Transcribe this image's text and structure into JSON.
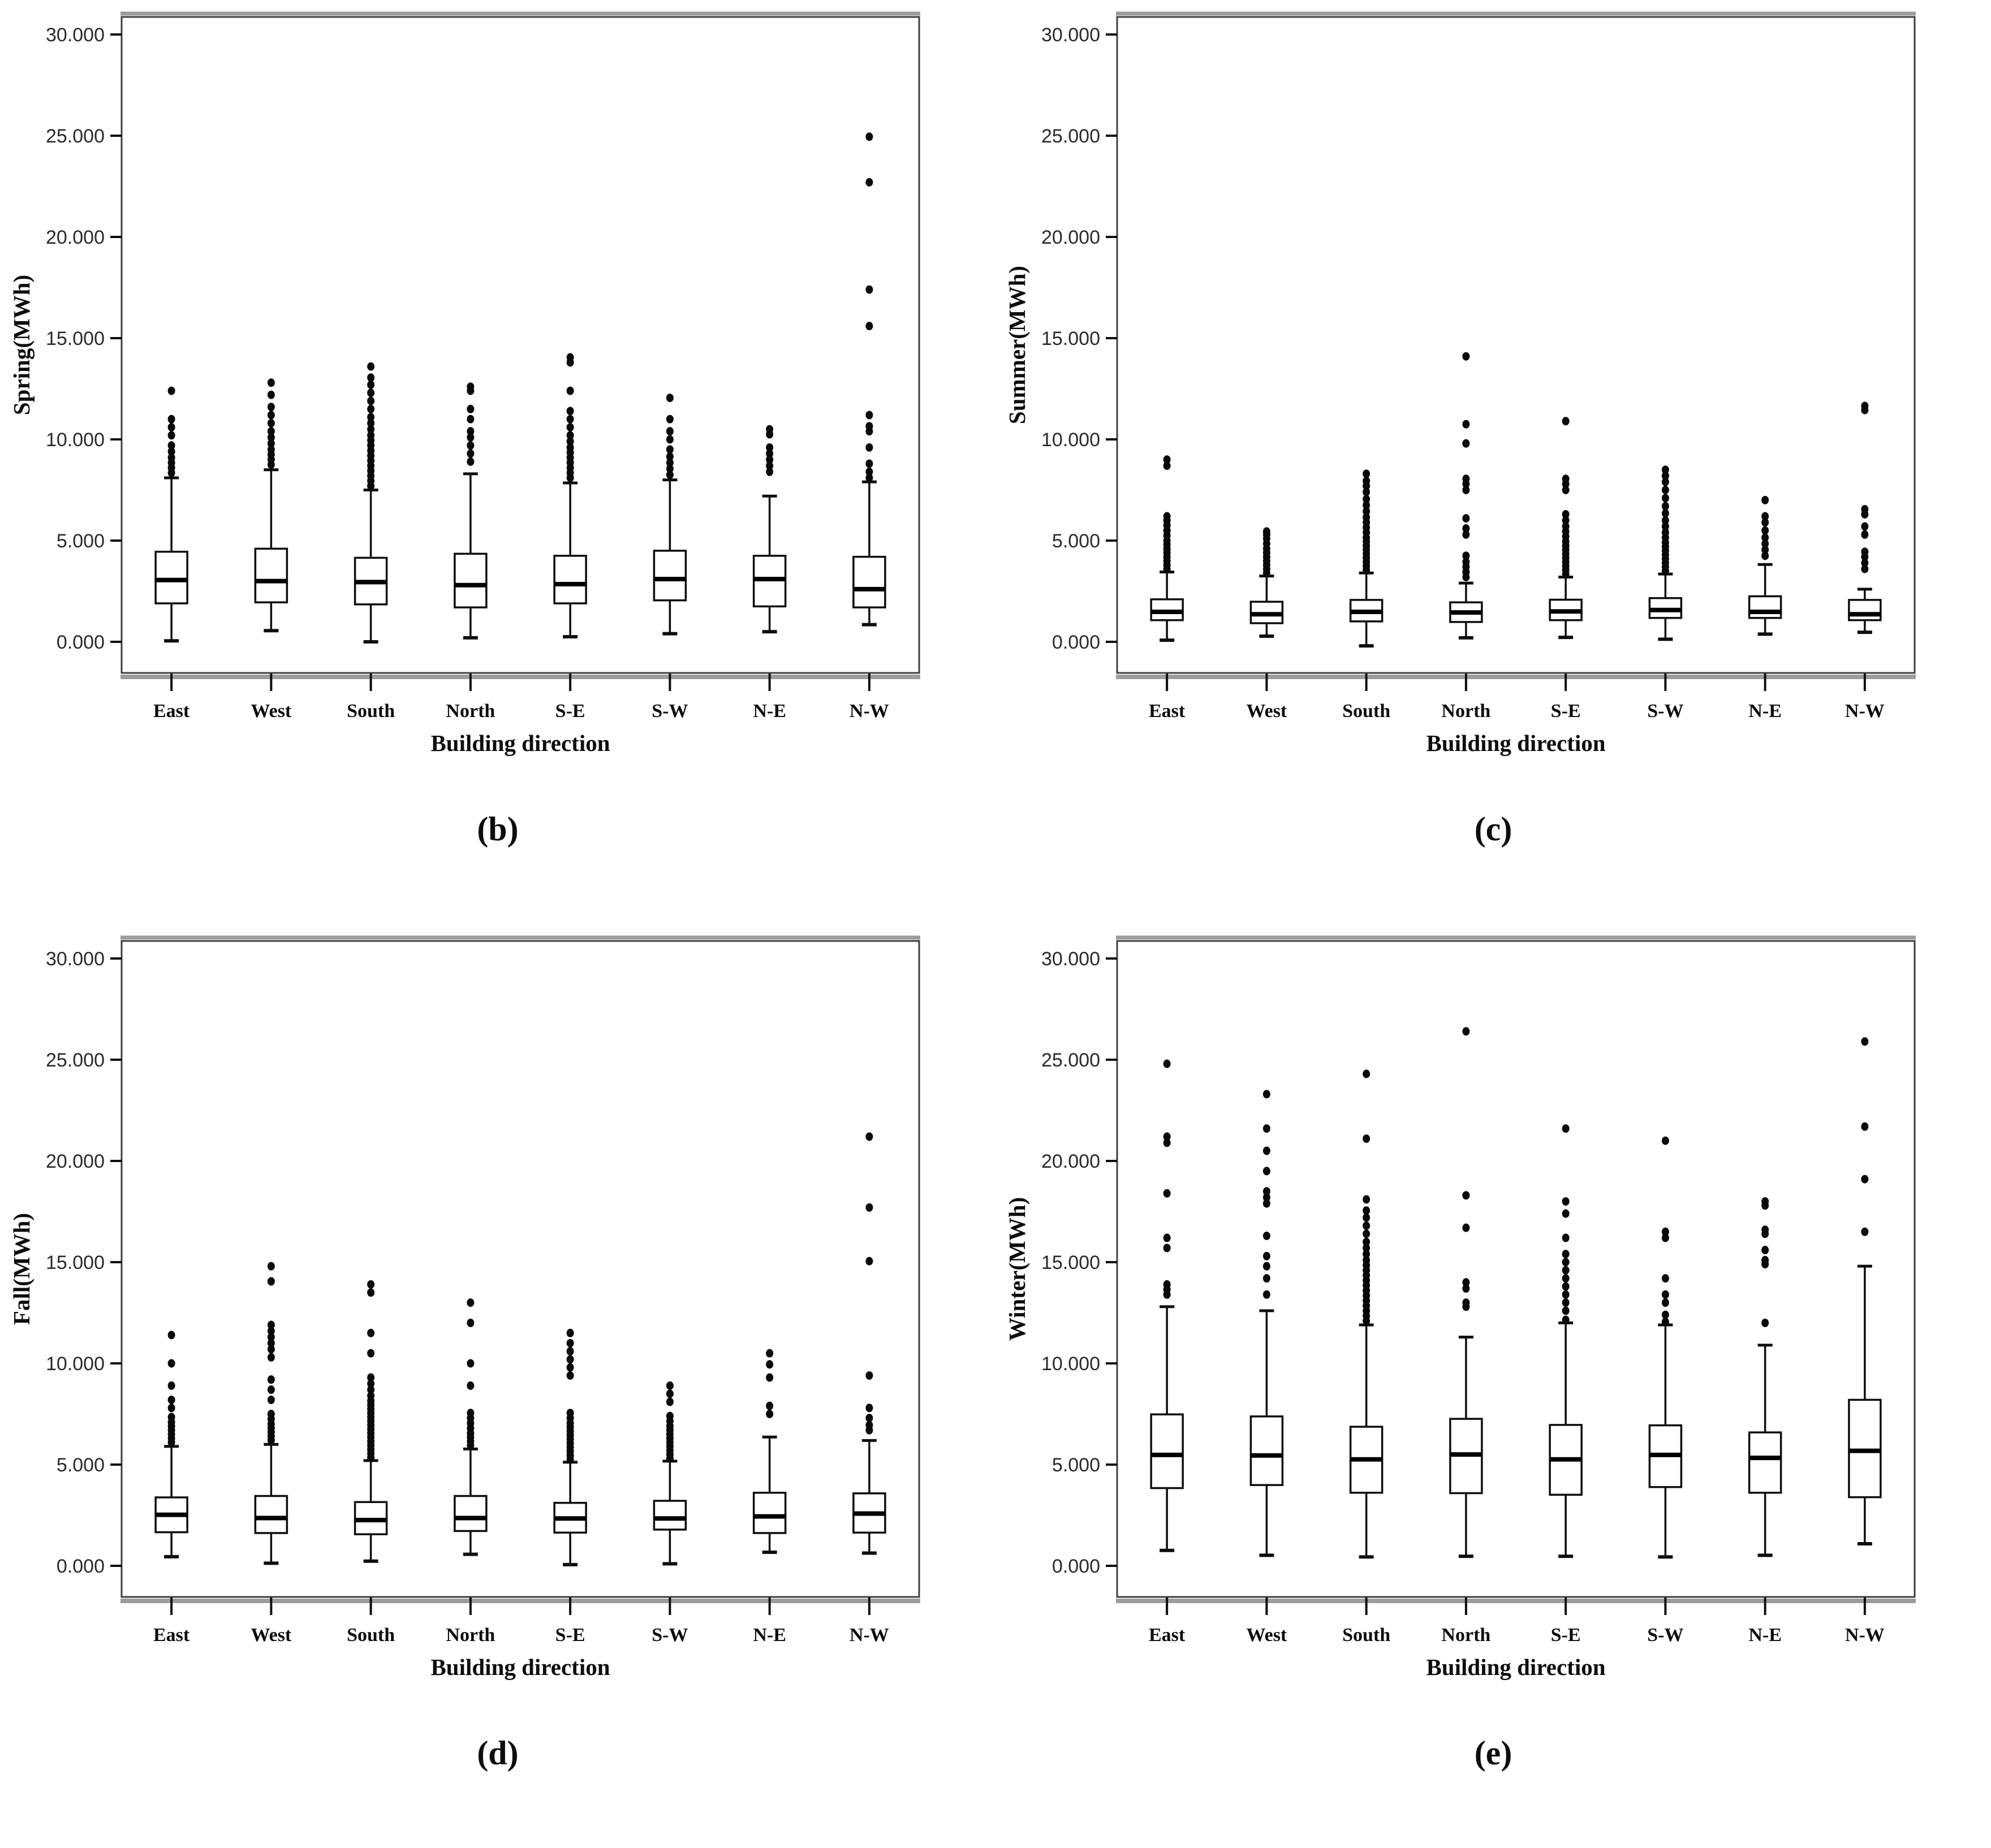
{
  "figure": {
    "xlabel": "Building direction",
    "categories": [
      "East",
      "West",
      "South",
      "North",
      "S-E",
      "S-W",
      "N-E",
      "N-W"
    ],
    "ytick_values": [
      0,
      5000,
      10000,
      15000,
      20000,
      25000,
      30000
    ],
    "ytick_labels": [
      "0.000",
      "5.000",
      "10.000",
      "15.000",
      "20.000",
      "25.000",
      "30.000"
    ],
    "ylim": [
      -1600,
      30900
    ],
    "grid": "off",
    "colors": {
      "ink": "#0d0d0d",
      "frame": "#3f3f3f",
      "frame_shadow": "#9c9c9c",
      "box_fill": "#ffffff",
      "background": "#ffffff"
    }
  },
  "chart_data": [
    {
      "type": "box",
      "id": "spring",
      "caption": "(b)",
      "ylabel": "Spring(MWh)",
      "xlabel": "Building direction",
      "categories": [
        "East",
        "West",
        "South",
        "North",
        "S-E",
        "S-W",
        "N-E",
        "N-W"
      ],
      "ytick_values": [
        0,
        5000,
        10000,
        15000,
        20000,
        25000,
        30000
      ],
      "ytick_labels": [
        "0.000",
        "5.000",
        "10.000",
        "15.000",
        "20.000",
        "25.000",
        "30.000"
      ],
      "ylim": [
        -1600,
        30900
      ],
      "boxes": [
        {
          "category": "East",
          "whislo": 50,
          "q1": 1900,
          "med": 3050,
          "q3": 4450,
          "whishi": 8100,
          "outliers": [
            8350,
            8600,
            8850,
            9100,
            9400,
            9700,
            10200,
            10600,
            11000,
            12400
          ]
        },
        {
          "category": "West",
          "whislo": 550,
          "q1": 1950,
          "med": 3000,
          "q3": 4600,
          "whishi": 8500,
          "outliers": [
            8750,
            9000,
            9250,
            9500,
            9800,
            10100,
            10400,
            10800,
            11200,
            11600,
            12200,
            12800
          ]
        },
        {
          "category": "South",
          "whislo": 0,
          "q1": 1850,
          "med": 2950,
          "q3": 4150,
          "whishi": 7500,
          "outliers": [
            7700,
            7950,
            8200,
            8450,
            8700,
            8950,
            9200,
            9450,
            9700,
            9950,
            10200,
            10500,
            10800,
            11100,
            11500,
            11900,
            12300,
            12700,
            13050,
            13600
          ]
        },
        {
          "category": "North",
          "whislo": 200,
          "q1": 1700,
          "med": 2800,
          "q3": 4350,
          "whishi": 8300,
          "outliers": [
            8900,
            9300,
            9700,
            10100,
            10400,
            11000,
            11500,
            12400,
            12600
          ]
        },
        {
          "category": "S-E",
          "whislo": 250,
          "q1": 1900,
          "med": 2850,
          "q3": 4250,
          "whishi": 7850,
          "outliers": [
            8100,
            8350,
            8600,
            8850,
            9100,
            9350,
            9600,
            9900,
            10200,
            10600,
            11000,
            11400,
            12400,
            13800,
            14050
          ]
        },
        {
          "category": "S-W",
          "whislo": 400,
          "q1": 2050,
          "med": 3100,
          "q3": 4500,
          "whishi": 8000,
          "outliers": [
            8250,
            8550,
            8850,
            9150,
            9500,
            10000,
            10400,
            11000,
            12050
          ]
        },
        {
          "category": "N-E",
          "whislo": 500,
          "q1": 1750,
          "med": 3100,
          "q3": 4250,
          "whishi": 7200,
          "outliers": [
            8400,
            8700,
            9000,
            9300,
            9600,
            10250,
            10500
          ]
        },
        {
          "category": "N-W",
          "whislo": 850,
          "q1": 1700,
          "med": 2600,
          "q3": 4200,
          "whishi": 7900,
          "outliers": [
            8100,
            8400,
            8800,
            9600,
            10400,
            10650,
            11200,
            15600,
            17400,
            22700,
            24950
          ]
        }
      ]
    },
    {
      "type": "box",
      "id": "summer",
      "caption": "(c)",
      "ylabel": "Summer(MWh)",
      "xlabel": "Building direction",
      "categories": [
        "East",
        "West",
        "South",
        "North",
        "S-E",
        "S-W",
        "N-E",
        "N-W"
      ],
      "ytick_values": [
        0,
        5000,
        10000,
        15000,
        20000,
        25000,
        30000
      ],
      "ytick_labels": [
        "0.000",
        "5.000",
        "10.000",
        "15.000",
        "20.000",
        "25.000",
        "30.000"
      ],
      "ylim": [
        -1600,
        30900
      ],
      "boxes": [
        {
          "category": "East",
          "whislo": 80,
          "q1": 1070,
          "med": 1480,
          "q3": 2100,
          "whishi": 3450,
          "outliers": [
            3600,
            3800,
            4000,
            4200,
            4400,
            4600,
            4800,
            5000,
            5250,
            5500,
            5750,
            6000,
            6200,
            8700,
            9000
          ]
        },
        {
          "category": "West",
          "whislo": 280,
          "q1": 920,
          "med": 1360,
          "q3": 1980,
          "whishi": 3250,
          "outliers": [
            3400,
            3600,
            3800,
            4000,
            4200,
            4400,
            4600,
            4850,
            5100,
            5300,
            5450
          ]
        },
        {
          "category": "South",
          "whislo": -200,
          "q1": 1010,
          "med": 1480,
          "q3": 2070,
          "whishi": 3400,
          "outliers": [
            3550,
            3750,
            3950,
            4150,
            4350,
            4550,
            4750,
            4950,
            5150,
            5400,
            5650,
            5900,
            6150,
            6450,
            6750,
            7050,
            7400,
            7700,
            7950,
            8300
          ]
        },
        {
          "category": "North",
          "whislo": 200,
          "q1": 980,
          "med": 1450,
          "q3": 1950,
          "whishi": 2900,
          "outliers": [
            3200,
            3450,
            3700,
            3950,
            4250,
            5300,
            5600,
            6100,
            7500,
            7800,
            8050,
            9800,
            10750,
            14100
          ]
        },
        {
          "category": "S-E",
          "whislo": 220,
          "q1": 1070,
          "med": 1500,
          "q3": 2080,
          "whishi": 3200,
          "outliers": [
            3350,
            3550,
            3750,
            3950,
            4150,
            4350,
            4550,
            4750,
            4950,
            5200,
            5450,
            5700,
            6000,
            6300,
            7500,
            7800,
            8050,
            10900
          ]
        },
        {
          "category": "S-W",
          "whislo": 130,
          "q1": 1180,
          "med": 1570,
          "q3": 2160,
          "whishi": 3350,
          "outliers": [
            3500,
            3700,
            3900,
            4100,
            4300,
            4500,
            4700,
            4900,
            5150,
            5400,
            5700,
            6000,
            6350,
            6700,
            7100,
            7500,
            7900,
            8200,
            8500
          ]
        },
        {
          "category": "N-E",
          "whislo": 380,
          "q1": 1180,
          "med": 1480,
          "q3": 2250,
          "whishi": 3820,
          "outliers": [
            4250,
            4550,
            4850,
            5150,
            5500,
            5900,
            6200,
            7000
          ]
        },
        {
          "category": "N-W",
          "whislo": 470,
          "q1": 1070,
          "med": 1360,
          "q3": 2070,
          "whishi": 2600,
          "outliers": [
            3600,
            3900,
            4200,
            4450,
            5300,
            5700,
            6300,
            6550,
            11450,
            11650
          ]
        }
      ]
    },
    {
      "type": "box",
      "id": "fall",
      "caption": "(d)",
      "ylabel": "Fall(MWh)",
      "xlabel": "Building direction",
      "categories": [
        "East",
        "West",
        "South",
        "North",
        "S-E",
        "S-W",
        "N-E",
        "N-W"
      ],
      "ytick_values": [
        0,
        5000,
        10000,
        15000,
        20000,
        25000,
        30000
      ],
      "ytick_labels": [
        "0.000",
        "5.000",
        "10.000",
        "15.000",
        "20.000",
        "25.000",
        "30.000"
      ],
      "ylim": [
        -1600,
        30900
      ],
      "boxes": [
        {
          "category": "East",
          "whislo": 450,
          "q1": 1660,
          "med": 2520,
          "q3": 3380,
          "whishi": 5900,
          "outliers": [
            6100,
            6300,
            6500,
            6700,
            6900,
            7100,
            7350,
            7800,
            8200,
            8900,
            10000,
            11400
          ]
        },
        {
          "category": "West",
          "whislo": 130,
          "q1": 1620,
          "med": 2360,
          "q3": 3450,
          "whishi": 6000,
          "outliers": [
            6200,
            6400,
            6600,
            6800,
            7000,
            7250,
            7500,
            8200,
            8700,
            9200,
            10300,
            10700,
            11000,
            11300,
            11600,
            11900,
            14050,
            14800
          ]
        },
        {
          "category": "South",
          "whislo": 230,
          "q1": 1560,
          "med": 2260,
          "q3": 3150,
          "whishi": 5200,
          "outliers": [
            5350,
            5550,
            5750,
            5950,
            6150,
            6350,
            6550,
            6750,
            6950,
            7150,
            7350,
            7550,
            7750,
            7950,
            8150,
            8400,
            8700,
            9000,
            9300,
            10500,
            11500,
            13500,
            13900
          ]
        },
        {
          "category": "North",
          "whislo": 570,
          "q1": 1720,
          "med": 2360,
          "q3": 3450,
          "whishi": 5770,
          "outliers": [
            5950,
            6150,
            6350,
            6550,
            6800,
            7050,
            7300,
            7550,
            8900,
            10000,
            12000,
            13000
          ]
        },
        {
          "category": "S-E",
          "whislo": 60,
          "q1": 1640,
          "med": 2340,
          "q3": 3110,
          "whishi": 5120,
          "outliers": [
            5250,
            5450,
            5650,
            5850,
            6050,
            6250,
            6450,
            6650,
            6850,
            7050,
            7300,
            7550,
            9400,
            9800,
            10200,
            10600,
            11000,
            11500
          ]
        },
        {
          "category": "S-W",
          "whislo": 100,
          "q1": 1790,
          "med": 2340,
          "q3": 3210,
          "whishi": 5170,
          "outliers": [
            5300,
            5500,
            5700,
            5900,
            6100,
            6300,
            6500,
            6700,
            6900,
            7150,
            7400,
            8100,
            8500,
            8900
          ]
        },
        {
          "category": "N-E",
          "whislo": 670,
          "q1": 1620,
          "med": 2440,
          "q3": 3610,
          "whishi": 6360,
          "outliers": [
            7500,
            7900,
            9300,
            9950,
            10500
          ]
        },
        {
          "category": "N-W",
          "whislo": 630,
          "q1": 1640,
          "med": 2580,
          "q3": 3580,
          "whishi": 6190,
          "outliers": [
            6700,
            6950,
            7300,
            7800,
            9400,
            15050,
            17700,
            21200
          ]
        }
      ]
    },
    {
      "type": "box",
      "id": "winter",
      "caption": "(e)",
      "ylabel": "Winter(MWh)",
      "xlabel": "Building direction",
      "categories": [
        "East",
        "West",
        "South",
        "North",
        "S-E",
        "S-W",
        "N-E",
        "N-W"
      ],
      "ytick_values": [
        0,
        5000,
        10000,
        15000,
        20000,
        25000,
        30000
      ],
      "ytick_labels": [
        "0.000",
        "5.000",
        "10.000",
        "15.000",
        "20.000",
        "25.000",
        "30.000"
      ],
      "ylim": [
        -1600,
        30900
      ],
      "boxes": [
        {
          "category": "East",
          "whislo": 760,
          "q1": 3840,
          "med": 5480,
          "q3": 7480,
          "whishi": 12800,
          "outliers": [
            13400,
            13650,
            13900,
            15700,
            16200,
            18400,
            20900,
            21200,
            24800
          ]
        },
        {
          "category": "West",
          "whislo": 520,
          "q1": 3990,
          "med": 5450,
          "q3": 7380,
          "whishi": 12600,
          "outliers": [
            13400,
            14200,
            14800,
            15300,
            16300,
            17900,
            18200,
            18500,
            19500,
            20500,
            21600,
            23300
          ]
        },
        {
          "category": "South",
          "whislo": 440,
          "q1": 3610,
          "med": 5260,
          "q3": 6870,
          "whishi": 11900,
          "outliers": [
            12100,
            12350,
            12600,
            12850,
            13100,
            13350,
            13600,
            13850,
            14100,
            14350,
            14600,
            14850,
            15100,
            15400,
            15700,
            16000,
            16400,
            16800,
            17200,
            17550,
            18100,
            21100,
            24300
          ]
        },
        {
          "category": "North",
          "whislo": 470,
          "q1": 3590,
          "med": 5500,
          "q3": 7260,
          "whishi": 11300,
          "outliers": [
            12800,
            13000,
            13700,
            14000,
            16700,
            18300,
            26400
          ]
        },
        {
          "category": "S-E",
          "whislo": 470,
          "q1": 3510,
          "med": 5260,
          "q3": 6960,
          "whishi": 12000,
          "outliers": [
            12150,
            12600,
            13000,
            13400,
            13800,
            14200,
            14600,
            15000,
            15400,
            16200,
            17400,
            18000,
            21600
          ]
        },
        {
          "category": "S-W",
          "whislo": 440,
          "q1": 3890,
          "med": 5480,
          "q3": 6940,
          "whishi": 11900,
          "outliers": [
            12050,
            12400,
            13000,
            13400,
            14200,
            16200,
            16500,
            21000
          ]
        },
        {
          "category": "N-E",
          "whislo": 520,
          "q1": 3610,
          "med": 5330,
          "q3": 6590,
          "whishi": 10900,
          "outliers": [
            12000,
            14900,
            15100,
            15600,
            16400,
            16600,
            17800,
            18000
          ]
        },
        {
          "category": "N-W",
          "whislo": 1090,
          "q1": 3390,
          "med": 5680,
          "q3": 8200,
          "whishi": 14800,
          "outliers": [
            16500,
            19100,
            21700,
            25900
          ]
        }
      ]
    }
  ]
}
